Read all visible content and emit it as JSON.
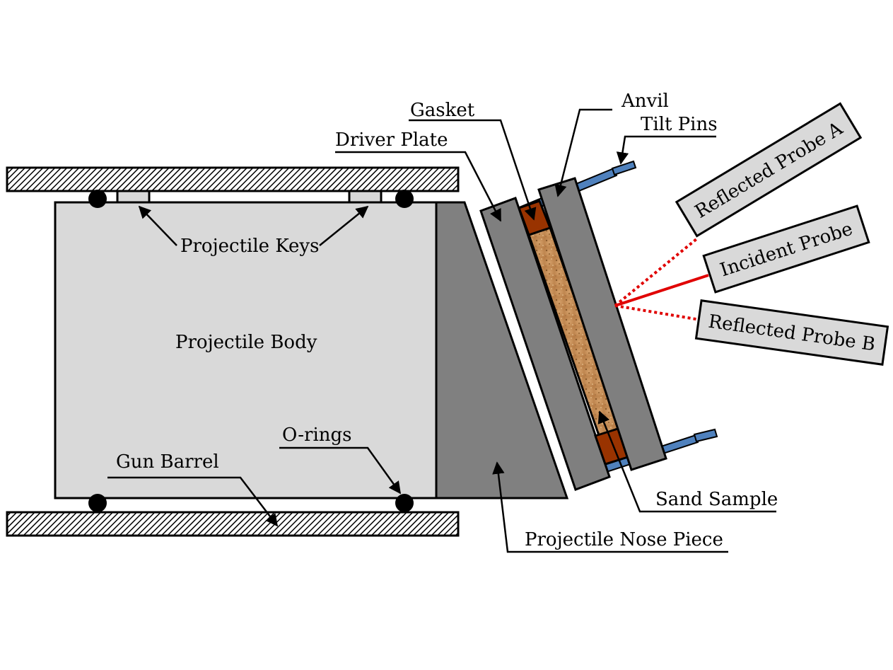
{
  "labels": {
    "projectile_keys": "Projectile Keys",
    "projectile_body": "Projectile Body",
    "o_rings": "O-rings",
    "gun_barrel": "Gun Barrel",
    "driver_plate": "Driver Plate",
    "gasket": "Gasket",
    "anvil": "Anvil",
    "tilt_pins": "Tilt Pins",
    "sand_sample": "Sand Sample",
    "projectile_nose_piece": "Projectile Nose Piece"
  },
  "probes": {
    "reflected_a": "Reflected Probe A",
    "incident": "Incident Probe",
    "reflected_b": "Reflected Probe B"
  },
  "colors": {
    "barrel_hatch": "#000000",
    "projectile_body": "#d9d9d9",
    "nose_piece": "#808080",
    "plates": "#7f7f7f",
    "gasket": "#993300",
    "sand": "#c8905a",
    "tilt_pins": "#4f81bd",
    "probe_beam": "#e00000",
    "probe_box": "#d9d9d9"
  }
}
